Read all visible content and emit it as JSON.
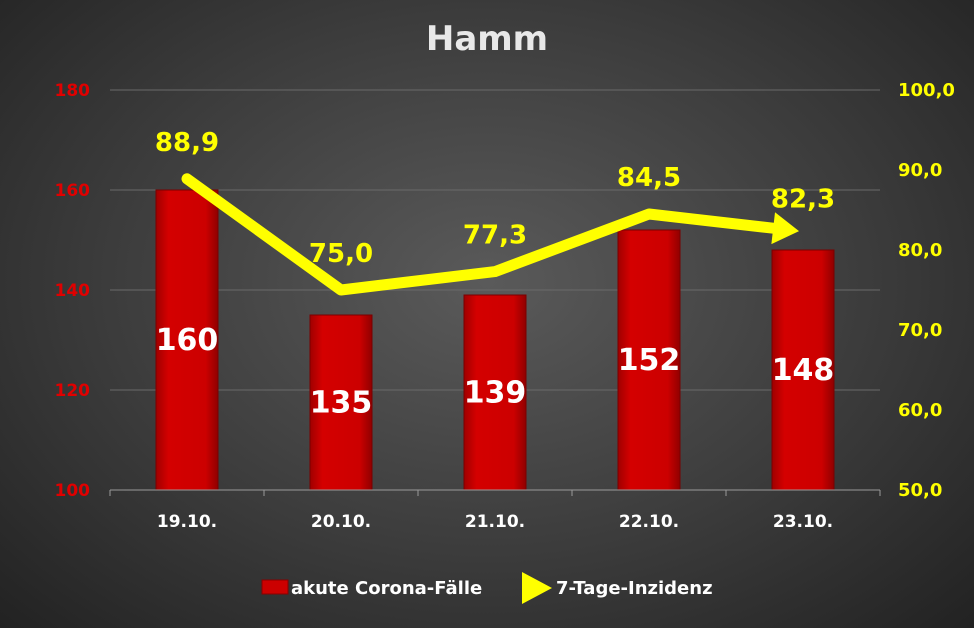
{
  "chart_data": {
    "type": "bar",
    "title": "Hamm",
    "categories": [
      "19.10.",
      "20.10.",
      "21.10.",
      "22.10.",
      "23.10."
    ],
    "series": [
      {
        "name": "akute Corona-Fälle",
        "type": "bar",
        "axis": "left",
        "values": [
          160,
          135,
          139,
          152,
          148
        ],
        "labels": [
          "160",
          "135",
          "139",
          "152",
          "148"
        ],
        "color": "#cc0000"
      },
      {
        "name": "7-Tage-Inzidenz",
        "type": "line",
        "axis": "right",
        "values": [
          88.9,
          75.0,
          77.3,
          84.5,
          82.3
        ],
        "labels": [
          "88,9",
          "75,0",
          "77,3",
          "84,5",
          "82,3"
        ],
        "color": "#ffff00",
        "end_marker": "arrow"
      }
    ],
    "left_axis": {
      "range": [
        100,
        180
      ],
      "ticks": [
        "100",
        "120",
        "140",
        "160",
        "180"
      ],
      "color": "#e00000"
    },
    "right_axis": {
      "range": [
        50,
        100
      ],
      "ticks": [
        "50,0",
        "60,0",
        "70,0",
        "80,0",
        "90,0",
        "100,0"
      ],
      "color": "#ffff00"
    },
    "grid": true,
    "legend_position": "bottom"
  }
}
